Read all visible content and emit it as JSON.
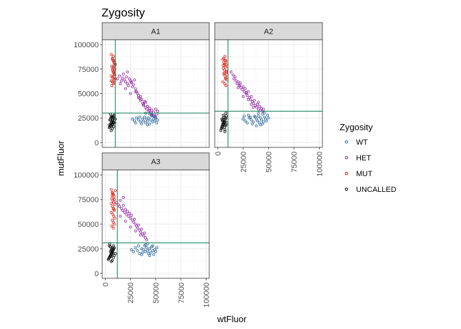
{
  "chart_data": {
    "type": "scatter",
    "title": "Zygosity",
    "xlabel": "wtFluor",
    "ylabel": "mutFluor",
    "xlim": [
      -3000,
      103000
    ],
    "ylim": [
      -5000,
      105000
    ],
    "x_ticks": [
      0,
      25000,
      50000,
      75000,
      100000
    ],
    "y_ticks": [
      0,
      25000,
      50000,
      75000,
      100000
    ],
    "x_tick_labels": [
      "0",
      "25000",
      "50000",
      "75000",
      "100000"
    ],
    "y_tick_labels": [
      "0",
      "25000",
      "50000",
      "75000",
      "100000"
    ],
    "grid": true,
    "legend": {
      "title": "Zygosity",
      "position": "right",
      "entries": [
        {
          "label": "WT",
          "color": "#1f5f99"
        },
        {
          "label": "HET",
          "color": "#8e1fa0"
        },
        {
          "label": "MUT",
          "color": "#e0140d"
        },
        {
          "label": "UNCALLED",
          "color": "#000000"
        }
      ]
    },
    "facets": [
      {
        "name": "A1",
        "vline": 10000,
        "hline": 30000,
        "series": [
          {
            "name": "WT",
            "x": [
              27000,
              29000,
              31000,
              33000,
              35000,
              37000,
              38000,
              39000,
              40000,
              41000,
              42000,
              43000,
              44000,
              45000,
              46000,
              47000,
              48000,
              49000,
              50000,
              51000,
              52000,
              44000,
              46000,
              48000,
              50000,
              40000,
              42000,
              36000,
              34000,
              30000
            ],
            "y": [
              24000,
              22000,
              25000,
              23000,
              21000,
              24000,
              22000,
              26000,
              20000,
              24000,
              22000,
              25000,
              19000,
              23000,
              27000,
              21000,
              24000,
              22000,
              25000,
              20000,
              23000,
              29000,
              28000,
              27000,
              26000,
              30000,
              18000,
              19000,
              26000,
              20000
            ]
          },
          {
            "name": "HET",
            "x": [
              12000,
              14000,
              16000,
              17000,
              18000,
              19000,
              20000,
              21000,
              22000,
              22000,
              23000,
              24000,
              25000,
              26000,
              27000,
              28000,
              29000,
              30000,
              31000,
              32000,
              33000,
              34000,
              35000,
              36000,
              37000,
              38000,
              39000,
              40000,
              41000,
              42000,
              43000,
              44000,
              45000,
              46000,
              47000,
              48000,
              49000,
              50000,
              51000,
              52000,
              15000,
              20000,
              25000,
              30000,
              35000,
              40000,
              26000,
              33000,
              38000,
              44000
            ],
            "y": [
              65000,
              68000,
              63000,
              66000,
              70000,
              64000,
              62000,
              67000,
              60000,
              72000,
              58000,
              65000,
              63000,
              61000,
              57000,
              59000,
              64000,
              55000,
              52000,
              50000,
              48000,
              45000,
              47000,
              44000,
              40000,
              38000,
              42000,
              36000,
              34000,
              37000,
              32000,
              35000,
              30000,
              33000,
              28000,
              31000,
              27000,
              34000,
              29000,
              32000,
              60000,
              55000,
              50000,
              52000,
              43000,
              41000,
              62000,
              46000,
              39000,
              33000
            ]
          },
          {
            "name": "MUT",
            "x": [
              6000,
              7000,
              8000,
              9000,
              10000,
              6500,
              7500,
              8500,
              9500,
              7000,
              8000,
              9000,
              6000,
              7500,
              8500,
              9500,
              10000,
              7000,
              8000,
              9000,
              6500,
              8000,
              9000,
              7000,
              8500,
              9500,
              6000,
              7500,
              8000,
              9000
            ],
            "y": [
              90000,
              85000,
              88000,
              82000,
              80000,
              78000,
              76000,
              84000,
              79000,
              74000,
              72000,
              70000,
              68000,
              66000,
              73000,
              69000,
              65000,
              62000,
              60000,
              64000,
              58000,
              77000,
              81000,
              86000,
              71000,
              75000,
              63000,
              67000,
              83000,
              61000
            ]
          },
          {
            "name": "UNCALLED",
            "x": [
              4000,
              5000,
              6000,
              7000,
              8000,
              9000,
              4500,
              5500,
              6500,
              7500,
              8500,
              4000,
              5000,
              6000,
              7000,
              8000,
              9000,
              10000,
              5000,
              6000,
              7000,
              8000,
              4500,
              5500,
              6500,
              7500,
              8500,
              9500,
              6000,
              7000
            ],
            "y": [
              15000,
              17000,
              20000,
              22000,
              25000,
              28000,
              16000,
              19000,
              21000,
              24000,
              27000,
              18000,
              23000,
              26000,
              14000,
              20000,
              22000,
              24000,
              29000,
              17000,
              19000,
              21000,
              23000,
              25000,
              27000,
              18000,
              16000,
              20000,
              12000,
              26000
            ]
          }
        ]
      },
      {
        "name": "A2",
        "vline": 10000,
        "hline": 32000,
        "series": [
          {
            "name": "WT",
            "x": [
              25000,
              27000,
              29000,
              31000,
              33000,
              35000,
              37000,
              38000,
              39000,
              40000,
              41000,
              42000,
              43000,
              44000,
              45000,
              46000,
              47000,
              48000,
              49000,
              50000,
              40000,
              42000,
              44000,
              36000,
              38000,
              30000,
              32000,
              34000,
              46000,
              26000
            ],
            "y": [
              24000,
              22000,
              20000,
              25000,
              23000,
              21000,
              26000,
              24000,
              22000,
              27000,
              20000,
              25000,
              23000,
              29000,
              21000,
              26000,
              24000,
              22000,
              28000,
              25000,
              30000,
              18000,
              19000,
              27000,
              17000,
              28000,
              26000,
              19000,
              30000,
              27000
            ]
          },
          {
            "name": "HET",
            "x": [
              13000,
              15000,
              16000,
              17000,
              18000,
              19000,
              20000,
              21000,
              22000,
              23000,
              24000,
              25000,
              26000,
              27000,
              28000,
              29000,
              30000,
              31000,
              32000,
              33000,
              34000,
              35000,
              36000,
              37000,
              38000,
              39000,
              40000,
              41000,
              42000,
              43000,
              44000,
              45000,
              20000,
              25000,
              30000,
              35000,
              40000,
              28000,
              33000,
              22000
            ],
            "y": [
              72000,
              69000,
              65000,
              67000,
              63000,
              60000,
              62000,
              58000,
              61000,
              56000,
              54000,
              57000,
              52000,
              55000,
              50000,
              48000,
              52000,
              46000,
              44000,
              47000,
              42000,
              40000,
              43000,
              38000,
              36000,
              39000,
              34000,
              37000,
              33000,
              35000,
              32000,
              34000,
              56000,
              47000,
              44000,
              36000,
              41000,
              51000,
              39000,
              59000
            ]
          },
          {
            "name": "MUT",
            "x": [
              5000,
              6000,
              7000,
              8000,
              9000,
              5500,
              6500,
              7500,
              8500,
              6000,
              7000,
              8000,
              9000,
              5000,
              6500,
              7500,
              8500,
              7000,
              8000,
              6000,
              9000,
              5500,
              6500,
              7500,
              8000
            ],
            "y": [
              85000,
              82000,
              88000,
              80000,
              78000,
              76000,
              74000,
              84000,
              72000,
              70000,
              68000,
              66000,
              64000,
              62000,
              80000,
              77000,
              73000,
              60000,
              58000,
              86000,
              69000,
              79000,
              71000,
              65000,
              83000
            ]
          },
          {
            "name": "UNCALLED",
            "x": [
              3000,
              4000,
              5000,
              6000,
              7000,
              8000,
              3500,
              4500,
              5500,
              6500,
              7500,
              8500,
              4000,
              5000,
              6000,
              7000,
              8000,
              9000,
              4500,
              5500,
              6500,
              7500,
              5000,
              6000,
              7000,
              8000,
              4000,
              6000
            ],
            "y": [
              12000,
              15000,
              18000,
              20000,
              22000,
              25000,
              14000,
              17000,
              19000,
              21000,
              24000,
              27000,
              16000,
              23000,
              26000,
              13000,
              18000,
              20000,
              22000,
              28000,
              15000,
              17000,
              19000,
              21000,
              11000,
              30000,
              24000,
              26000
            ]
          }
        ]
      },
      {
        "name": "A3",
        "vline": 12000,
        "hline": 31000,
        "series": [
          {
            "name": "WT",
            "x": [
              26000,
              28000,
              30000,
              32000,
              34000,
              36000,
              37000,
              38000,
              39000,
              40000,
              41000,
              42000,
              43000,
              44000,
              45000,
              46000,
              47000,
              48000,
              49000,
              50000,
              51000,
              40000,
              44000,
              36000,
              33000,
              47000,
              42000
            ],
            "y": [
              24000,
              22000,
              26000,
              23000,
              20000,
              25000,
              21000,
              24000,
              28000,
              22000,
              26000,
              23000,
              20000,
              25000,
              21000,
              27000,
              23000,
              19000,
              24000,
              22000,
              26000,
              29000,
              18000,
              19000,
              28000,
              28000,
              30000
            ]
          },
          {
            "name": "HET",
            "x": [
              11000,
              13000,
              14000,
              15000,
              16000,
              17000,
              18000,
              19000,
              20000,
              21000,
              22000,
              23000,
              24000,
              25000,
              26000,
              27000,
              28000,
              29000,
              30000,
              31000,
              32000,
              33000,
              34000,
              35000,
              36000,
              37000,
              38000,
              39000,
              40000,
              41000,
              15000,
              20000,
              25000,
              30000,
              35000,
              18000
            ],
            "y": [
              72000,
              70000,
              68000,
              74000,
              66000,
              64000,
              69000,
              62000,
              65000,
              60000,
              63000,
              58000,
              61000,
              56000,
              59000,
              54000,
              52000,
              55000,
              50000,
              48000,
              46000,
              49000,
              44000,
              42000,
              45000,
              40000,
              38000,
              41000,
              36000,
              34000,
              58000,
              53000,
              47000,
              43000,
              39000,
              77000
            ]
          },
          {
            "name": "MUT",
            "x": [
              6000,
              7000,
              8000,
              9000,
              10000,
              6500,
              7500,
              8500,
              9500,
              7000,
              8000,
              9000,
              6000,
              7500,
              8500,
              9500,
              7000,
              8000,
              9000,
              6500,
              8000,
              7000,
              9000,
              6000,
              8500,
              7500
            ],
            "y": [
              85000,
              82000,
              80000,
              78000,
              84000,
              76000,
              74000,
              72000,
              70000,
              68000,
              66000,
              64000,
              62000,
              60000,
              58000,
              56000,
              54000,
              52000,
              50000,
              48000,
              46000,
              79000,
              75000,
              71000,
              65000,
              81000
            ]
          },
          {
            "name": "UNCALLED",
            "x": [
              3000,
              4000,
              5000,
              6000,
              7000,
              8000,
              9000,
              3500,
              4500,
              5500,
              6500,
              7500,
              8500,
              4000,
              5000,
              6000,
              7000,
              8000,
              9000,
              10000,
              5000,
              6000,
              7000,
              8000,
              4500,
              5500,
              6500,
              7500,
              6000,
              7000
            ],
            "y": [
              14000,
              16000,
              18000,
              20000,
              22000,
              24000,
              26000,
              15000,
              17000,
              19000,
              21000,
              23000,
              25000,
              28000,
              27000,
              12000,
              13000,
              16000,
              18000,
              20000,
              22000,
              24000,
              26000,
              28000,
              30000,
              17000,
              19000,
              21000,
              23000,
              25000
            ]
          }
        ]
      }
    ]
  }
}
